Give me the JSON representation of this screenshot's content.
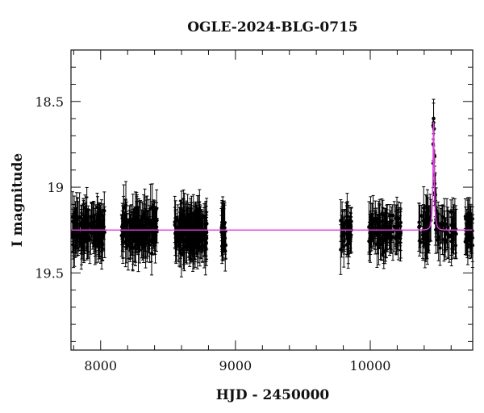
{
  "chart_data": {
    "type": "scatter",
    "title": "OGLE-2024-BLG-0715",
    "xlabel": "HJD - 2450000",
    "ylabel": "I magnitude",
    "xlim": [
      7780,
      10760
    ],
    "ylim": [
      18.2,
      19.95
    ],
    "y_inverted": true,
    "x_ticks": [
      8000,
      9000,
      10000
    ],
    "x_tick_labels": [
      "8000",
      "9000",
      "10000"
    ],
    "y_ticks": [
      18.5,
      19.0,
      19.5
    ],
    "y_tick_labels": [
      "18.5",
      "19",
      "19.5"
    ],
    "baseline_magnitude": 19.25,
    "seasons": [
      {
        "start": 7790,
        "end": 8030,
        "count": 140
      },
      {
        "start": 8150,
        "end": 8420,
        "count": 150
      },
      {
        "start": 8550,
        "end": 8790,
        "count": 190
      },
      {
        "start": 8890,
        "end": 8930,
        "count": 25
      },
      {
        "start": 9780,
        "end": 9870,
        "count": 40
      },
      {
        "start": 9990,
        "end": 10230,
        "count": 110
      },
      {
        "start": 10360,
        "end": 10640,
        "count": 100
      },
      {
        "start": 10700,
        "end": 10760,
        "count": 35
      }
    ],
    "model": {
      "t0": 10470,
      "peak_magnitude": 18.62,
      "baseline_magnitude": 19.25,
      "tE": 20,
      "u0": 0.18
    },
    "colors": {
      "points": "#000000",
      "model": "#e33de3",
      "frame": "#111111"
    }
  }
}
